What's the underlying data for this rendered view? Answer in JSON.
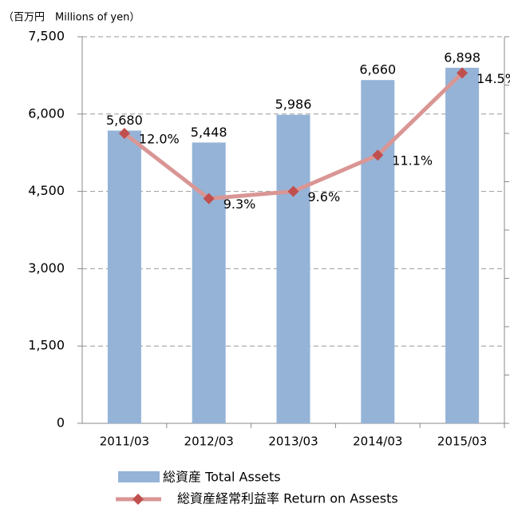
{
  "chart_data": {
    "type": "bar_line",
    "y_axis_label": "（百万円　Millions of yen）",
    "categories": [
      "2011/03",
      "2012/03",
      "2013/03",
      "2014/03",
      "2015/03"
    ],
    "series": [
      {
        "name": "総資産 Total Assets",
        "type": "bar",
        "color": "#95b3d7",
        "values": [
          5680,
          5448,
          5986,
          6660,
          6898
        ],
        "value_labels": [
          "5,680",
          "5,448",
          "5,986",
          "6,660",
          "6,898"
        ]
      },
      {
        "name": "総資産経常利益率 Return on Assests",
        "type": "line",
        "axis": "y2",
        "color": "#d99694",
        "marker_color": "#c0504d",
        "values": [
          12.0,
          9.3,
          9.6,
          11.1,
          14.5
        ],
        "value_labels": [
          "12.0%",
          "9.3%",
          "9.6%",
          "11.1%",
          "14.5%"
        ]
      }
    ],
    "ylim": [
      0,
      7500
    ],
    "yticks": [
      0,
      {
        "value": 1500,
        "label": "1,500"
      },
      {
        "value": 3000,
        "label": "3,000"
      },
      {
        "value": 4500,
        "label": "4,500"
      },
      {
        "value": 6000,
        "label": "6,000"
      },
      {
        "value": 7500,
        "label": "7,500"
      }
    ],
    "y2lim": [
      0,
      16
    ],
    "y2ticks": [
      0,
      2,
      4,
      6,
      8,
      10,
      12,
      14,
      16
    ],
    "grid": true,
    "legend": "bottom"
  }
}
